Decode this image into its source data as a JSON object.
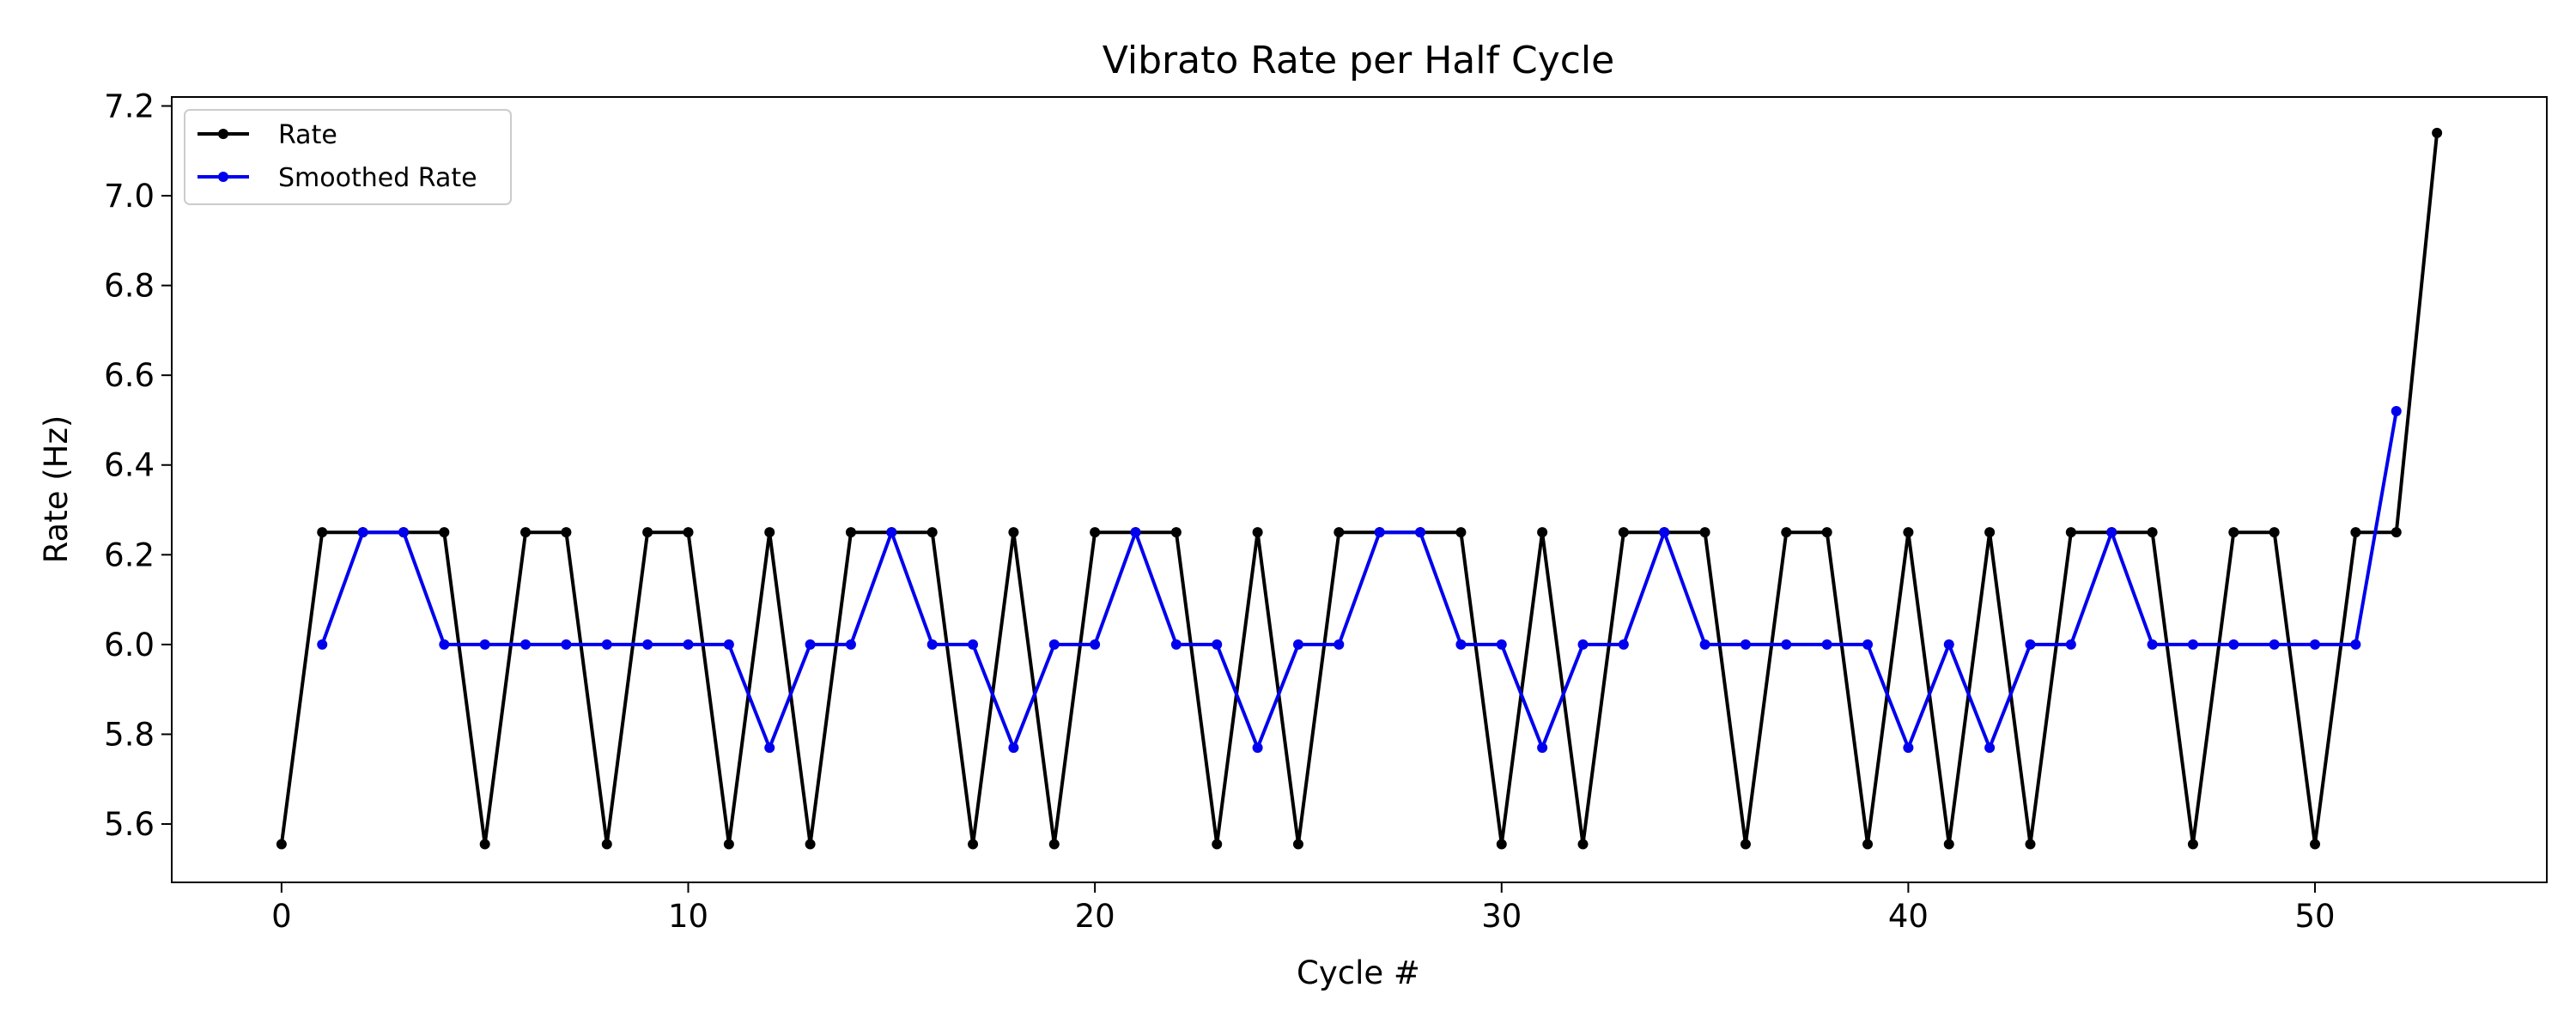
{
  "chart_data": {
    "type": "line",
    "title": "Vibrato Rate per Half Cycle",
    "xlabel": "Cycle #",
    "ylabel": "Rate (Hz)",
    "xlim": [
      -2.7,
      55.7
    ],
    "ylim": [
      5.47,
      7.22
    ],
    "x_ticks": [
      0,
      10,
      20,
      30,
      40,
      50
    ],
    "y_ticks": [
      5.6,
      5.8,
      6.0,
      6.2,
      6.4,
      6.6,
      6.8,
      7.0,
      7.2
    ],
    "grid": false,
    "legend_position": "top-left",
    "series": [
      {
        "name": "Rate",
        "color": "#000000",
        "x": [
          0,
          1,
          2,
          3,
          4,
          5,
          6,
          7,
          8,
          9,
          10,
          11,
          12,
          13,
          14,
          15,
          16,
          17,
          18,
          19,
          20,
          21,
          22,
          23,
          24,
          25,
          26,
          27,
          28,
          29,
          30,
          31,
          32,
          33,
          34,
          35,
          36,
          37,
          38,
          39,
          40,
          41,
          42,
          43,
          44,
          45,
          46,
          47,
          48,
          49,
          50,
          51,
          52,
          53
        ],
        "values": [
          5.555,
          6.25,
          6.25,
          6.25,
          6.25,
          5.555,
          6.25,
          6.25,
          5.555,
          6.25,
          6.25,
          5.555,
          6.25,
          5.555,
          6.25,
          6.25,
          6.25,
          5.555,
          6.25,
          5.555,
          6.25,
          6.25,
          6.25,
          5.555,
          6.25,
          5.555,
          6.25,
          6.25,
          6.25,
          6.25,
          5.555,
          6.25,
          5.555,
          6.25,
          6.25,
          6.25,
          5.555,
          6.25,
          6.25,
          5.555,
          6.25,
          5.555,
          6.25,
          5.555,
          6.25,
          6.25,
          6.25,
          5.555,
          6.25,
          6.25,
          5.555,
          6.25,
          6.25,
          7.14
        ]
      },
      {
        "name": "Smoothed Rate",
        "color": "#0000ee",
        "x": [
          1,
          2,
          3,
          4,
          5,
          6,
          7,
          8,
          9,
          10,
          11,
          12,
          13,
          14,
          15,
          16,
          17,
          18,
          19,
          20,
          21,
          22,
          23,
          24,
          25,
          26,
          27,
          28,
          29,
          30,
          31,
          32,
          33,
          34,
          35,
          36,
          37,
          38,
          39,
          40,
          41,
          42,
          43,
          44,
          45,
          46,
          47,
          48,
          49,
          50,
          51,
          52
        ],
        "values": [
          6.0,
          6.25,
          6.25,
          6.0,
          6.0,
          6.0,
          6.0,
          6.0,
          6.0,
          6.0,
          6.0,
          5.77,
          6.0,
          6.0,
          6.25,
          6.0,
          6.0,
          5.77,
          6.0,
          6.0,
          6.25,
          6.0,
          6.0,
          5.77,
          6.0,
          6.0,
          6.25,
          6.25,
          6.0,
          6.0,
          5.77,
          6.0,
          6.0,
          6.25,
          6.0,
          6.0,
          6.0,
          6.0,
          6.0,
          5.77,
          6.0,
          5.77,
          6.0,
          6.0,
          6.25,
          6.0,
          6.0,
          6.0,
          6.0,
          6.0,
          6.0,
          6.52
        ]
      }
    ]
  }
}
